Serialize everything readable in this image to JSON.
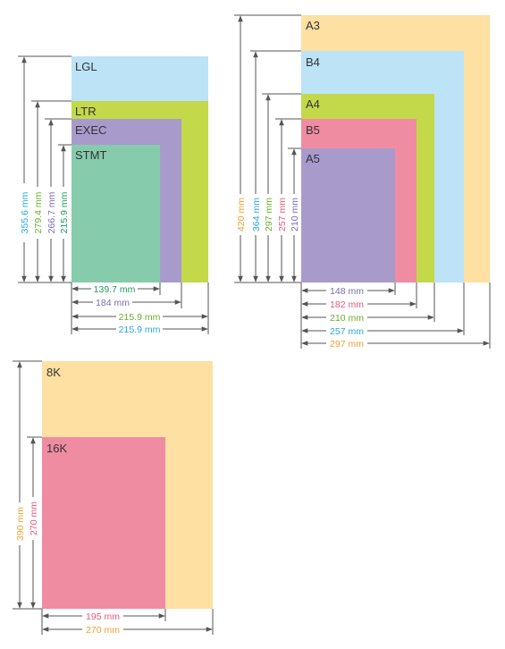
{
  "colors": {
    "light_blue": "#bde3f6",
    "green": "#c3d94a",
    "purple": "#a89bcc",
    "teal": "#86cbac",
    "orange": "#fde0a2",
    "pink": "#ef8ca2",
    "text_cyan": "#29a8dc",
    "text_green": "#6cae2b",
    "text_purple": "#7b6cb3",
    "text_teal": "#1f9b5a",
    "text_orange": "#f0a030",
    "text_pink": "#e55a7a",
    "line": "#555555"
  },
  "groups": {
    "north_america": {
      "sizes": [
        {
          "label": "LGL",
          "fill": "light_blue",
          "dim_color": "text_cyan"
        },
        {
          "label": "LTR",
          "fill": "green",
          "dim_color": "text_green"
        },
        {
          "label": "EXEC",
          "fill": "purple",
          "dim_color": "text_purple"
        },
        {
          "label": "STMT",
          "fill": "teal",
          "dim_color": "text_teal"
        }
      ],
      "height_labels": [
        "355.6 mm",
        "279.4 mm",
        "266.7 mm",
        "215.9 mm"
      ],
      "width_labels": [
        "139.7 mm",
        "184 mm",
        "215.9 mm",
        "215.9 mm"
      ]
    },
    "iso": {
      "sizes": [
        {
          "label": "A3",
          "fill": "orange",
          "dim_color": "text_orange"
        },
        {
          "label": "B4",
          "fill": "light_blue",
          "dim_color": "text_cyan"
        },
        {
          "label": "A4",
          "fill": "green",
          "dim_color": "text_green"
        },
        {
          "label": "B5",
          "fill": "pink",
          "dim_color": "text_pink"
        },
        {
          "label": "A5",
          "fill": "purple",
          "dim_color": "text_purple"
        }
      ],
      "height_labels": [
        "420 mm",
        "364 mm",
        "297 mm",
        "257 mm",
        "210 mm"
      ],
      "width_labels": [
        "148 mm",
        "182 mm",
        "210 mm",
        "257 mm",
        "297 mm"
      ]
    },
    "chinese": {
      "sizes": [
        {
          "label": "8K",
          "fill": "orange",
          "dim_color": "text_orange"
        },
        {
          "label": "16K",
          "fill": "pink",
          "dim_color": "text_pink"
        }
      ],
      "height_labels": [
        "390 mm",
        "270 mm"
      ],
      "width_labels": [
        "195 mm",
        "270 mm"
      ]
    }
  }
}
